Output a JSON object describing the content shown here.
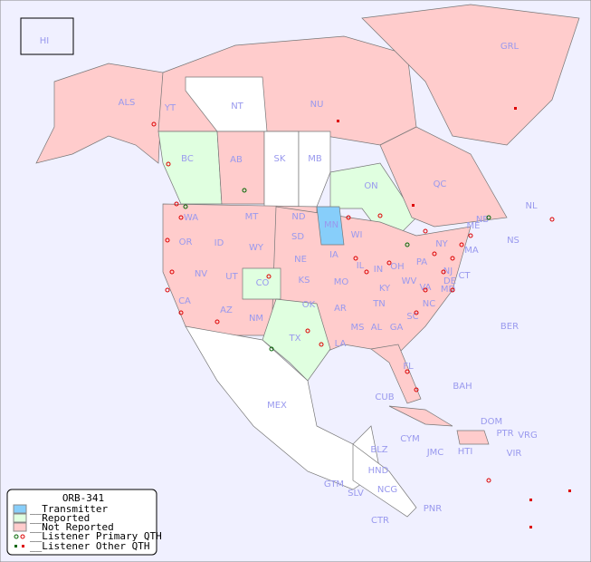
{
  "colors": {
    "ocean": "#f0f0ff",
    "transmitter": "#87cefa",
    "reported": "#e0ffe0",
    "not_reported": "#ffcccc",
    "unreported_other": "#ffffff",
    "label": "#9999ee",
    "listener": "#dd0000",
    "listener_primary_reported": "#006600"
  },
  "legend": {
    "title": "ORB-341",
    "items": [
      "__Transmitter",
      "__Reported",
      "__Not Reported",
      "__Listener Primary QTH",
      "__Listener Other QTH"
    ]
  },
  "map": {
    "transmitter_region": "MN",
    "reported_regions": [
      "BC",
      "ON",
      "CO",
      "TX",
      "NE",
      "MO",
      "IL",
      "IN",
      "OH",
      "NC",
      "KY",
      "WV"
    ],
    "labels": [
      "HI",
      "ALS",
      "YT",
      "NT",
      "NU",
      "GRL",
      "BC",
      "AB",
      "SK",
      "MB",
      "ON",
      "QC",
      "NL",
      "NS",
      "WA",
      "OR",
      "ID",
      "MT",
      "WY",
      "NV",
      "UT",
      "CA",
      "AZ",
      "NM",
      "CO",
      "ND",
      "SD",
      "NE",
      "KS",
      "OK",
      "TX",
      "MN",
      "IA",
      "MO",
      "AR",
      "LA",
      "WI",
      "IL",
      "MS",
      "AL",
      "GA",
      "FL",
      "TN",
      "KY",
      "IN",
      "OH",
      "WV",
      "VA",
      "NC",
      "SC",
      "PA",
      "NY",
      "ME",
      "MA",
      "CT",
      "NJ",
      "DE",
      "MD",
      "NB",
      "MEX",
      "CUB",
      "BAH",
      "BER",
      "DOM",
      "PTR",
      "VRG",
      "VIR",
      "HTI",
      "JMC",
      "CYM",
      "BLZ",
      "HND",
      "GTM",
      "SLV",
      "NCG",
      "CTR",
      "PNR"
    ]
  }
}
